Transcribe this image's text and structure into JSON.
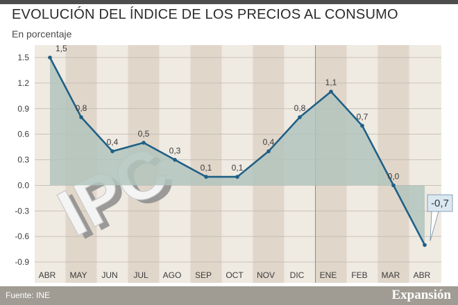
{
  "header": {
    "title": "EVOLUCIÓN DEL ÍNDICE DE LOS PRECIOS AL CONSUMO",
    "subtitle": "En porcentaje"
  },
  "footer": {
    "source": "Fuente: INE",
    "brand": "Expansión"
  },
  "watermark": {
    "text": "IPC"
  },
  "colors": {
    "line": "#1f5f86",
    "area": "#b2c4bd",
    "plot_bg": "#efeae2",
    "band": "#e1d6ca",
    "grid": "#bdb6ad",
    "callout_bg": "#dce8f0"
  },
  "chart_data": {
    "type": "line",
    "title": "EVOLUCIÓN DEL ÍNDICE DE LOS PRECIOS AL CONSUMO",
    "subtitle": "En porcentaje",
    "categories": [
      "ABR",
      "MAY",
      "JUN",
      "JUL",
      "AGO",
      "SEP",
      "OCT",
      "NOV",
      "DIC",
      "ENE",
      "FEB",
      "MAR",
      "ABR"
    ],
    "values": [
      1.5,
      0.8,
      0.4,
      0.5,
      0.3,
      0.1,
      0.1,
      0.4,
      0.8,
      1.1,
      0.7,
      0.0,
      -0.7
    ],
    "value_labels": [
      "1,5",
      "0,8",
      "0,4",
      "0,5",
      "0,3",
      "0,1",
      "0,1",
      "0,4",
      "0,8",
      "1,1",
      "0,7",
      "0,0",
      "-0,7"
    ],
    "ylim": [
      -0.9,
      1.5
    ],
    "yticks": [
      1.5,
      1.2,
      0.9,
      0.6,
      0.3,
      0.0,
      -0.3,
      -0.6,
      -0.9
    ],
    "ytick_labels": [
      "1.5",
      "1.2",
      "0.9",
      "0.6",
      "0.3",
      "0.0",
      "-0.3",
      "-0.6",
      "-0.9"
    ],
    "grid": true,
    "area_fill": true,
    "year_separator_before_index": 9
  }
}
